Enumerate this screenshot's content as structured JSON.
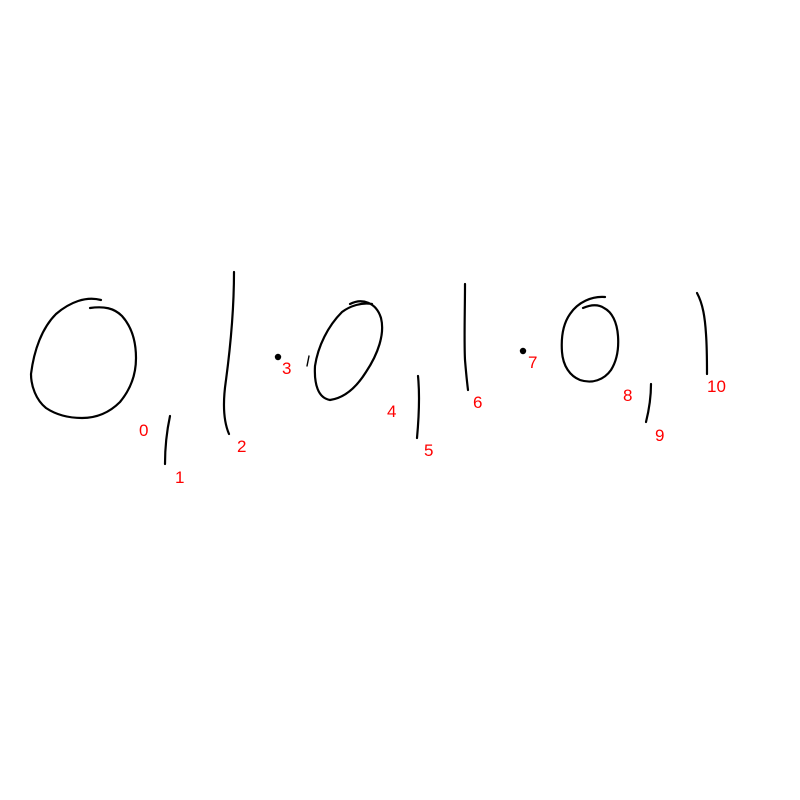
{
  "strokes": [
    {
      "index": 0,
      "label": "0",
      "shape": "loop"
    },
    {
      "index": 1,
      "label": "1",
      "shape": "line"
    },
    {
      "index": 2,
      "label": "2",
      "shape": "line"
    },
    {
      "index": 3,
      "label": "3",
      "shape": "dot"
    },
    {
      "index": 4,
      "label": "4",
      "shape": "loop"
    },
    {
      "index": 5,
      "label": "5",
      "shape": "line"
    },
    {
      "index": 6,
      "label": "6",
      "shape": "line"
    },
    {
      "index": 7,
      "label": "7",
      "shape": "dot"
    },
    {
      "index": 8,
      "label": "8",
      "shape": "loop"
    },
    {
      "index": 9,
      "label": "9",
      "shape": "line"
    },
    {
      "index": 10,
      "label": "10",
      "shape": "line"
    }
  ],
  "colors": {
    "ink": "#000000",
    "label": "#ff0000",
    "background": "#ffffff"
  }
}
